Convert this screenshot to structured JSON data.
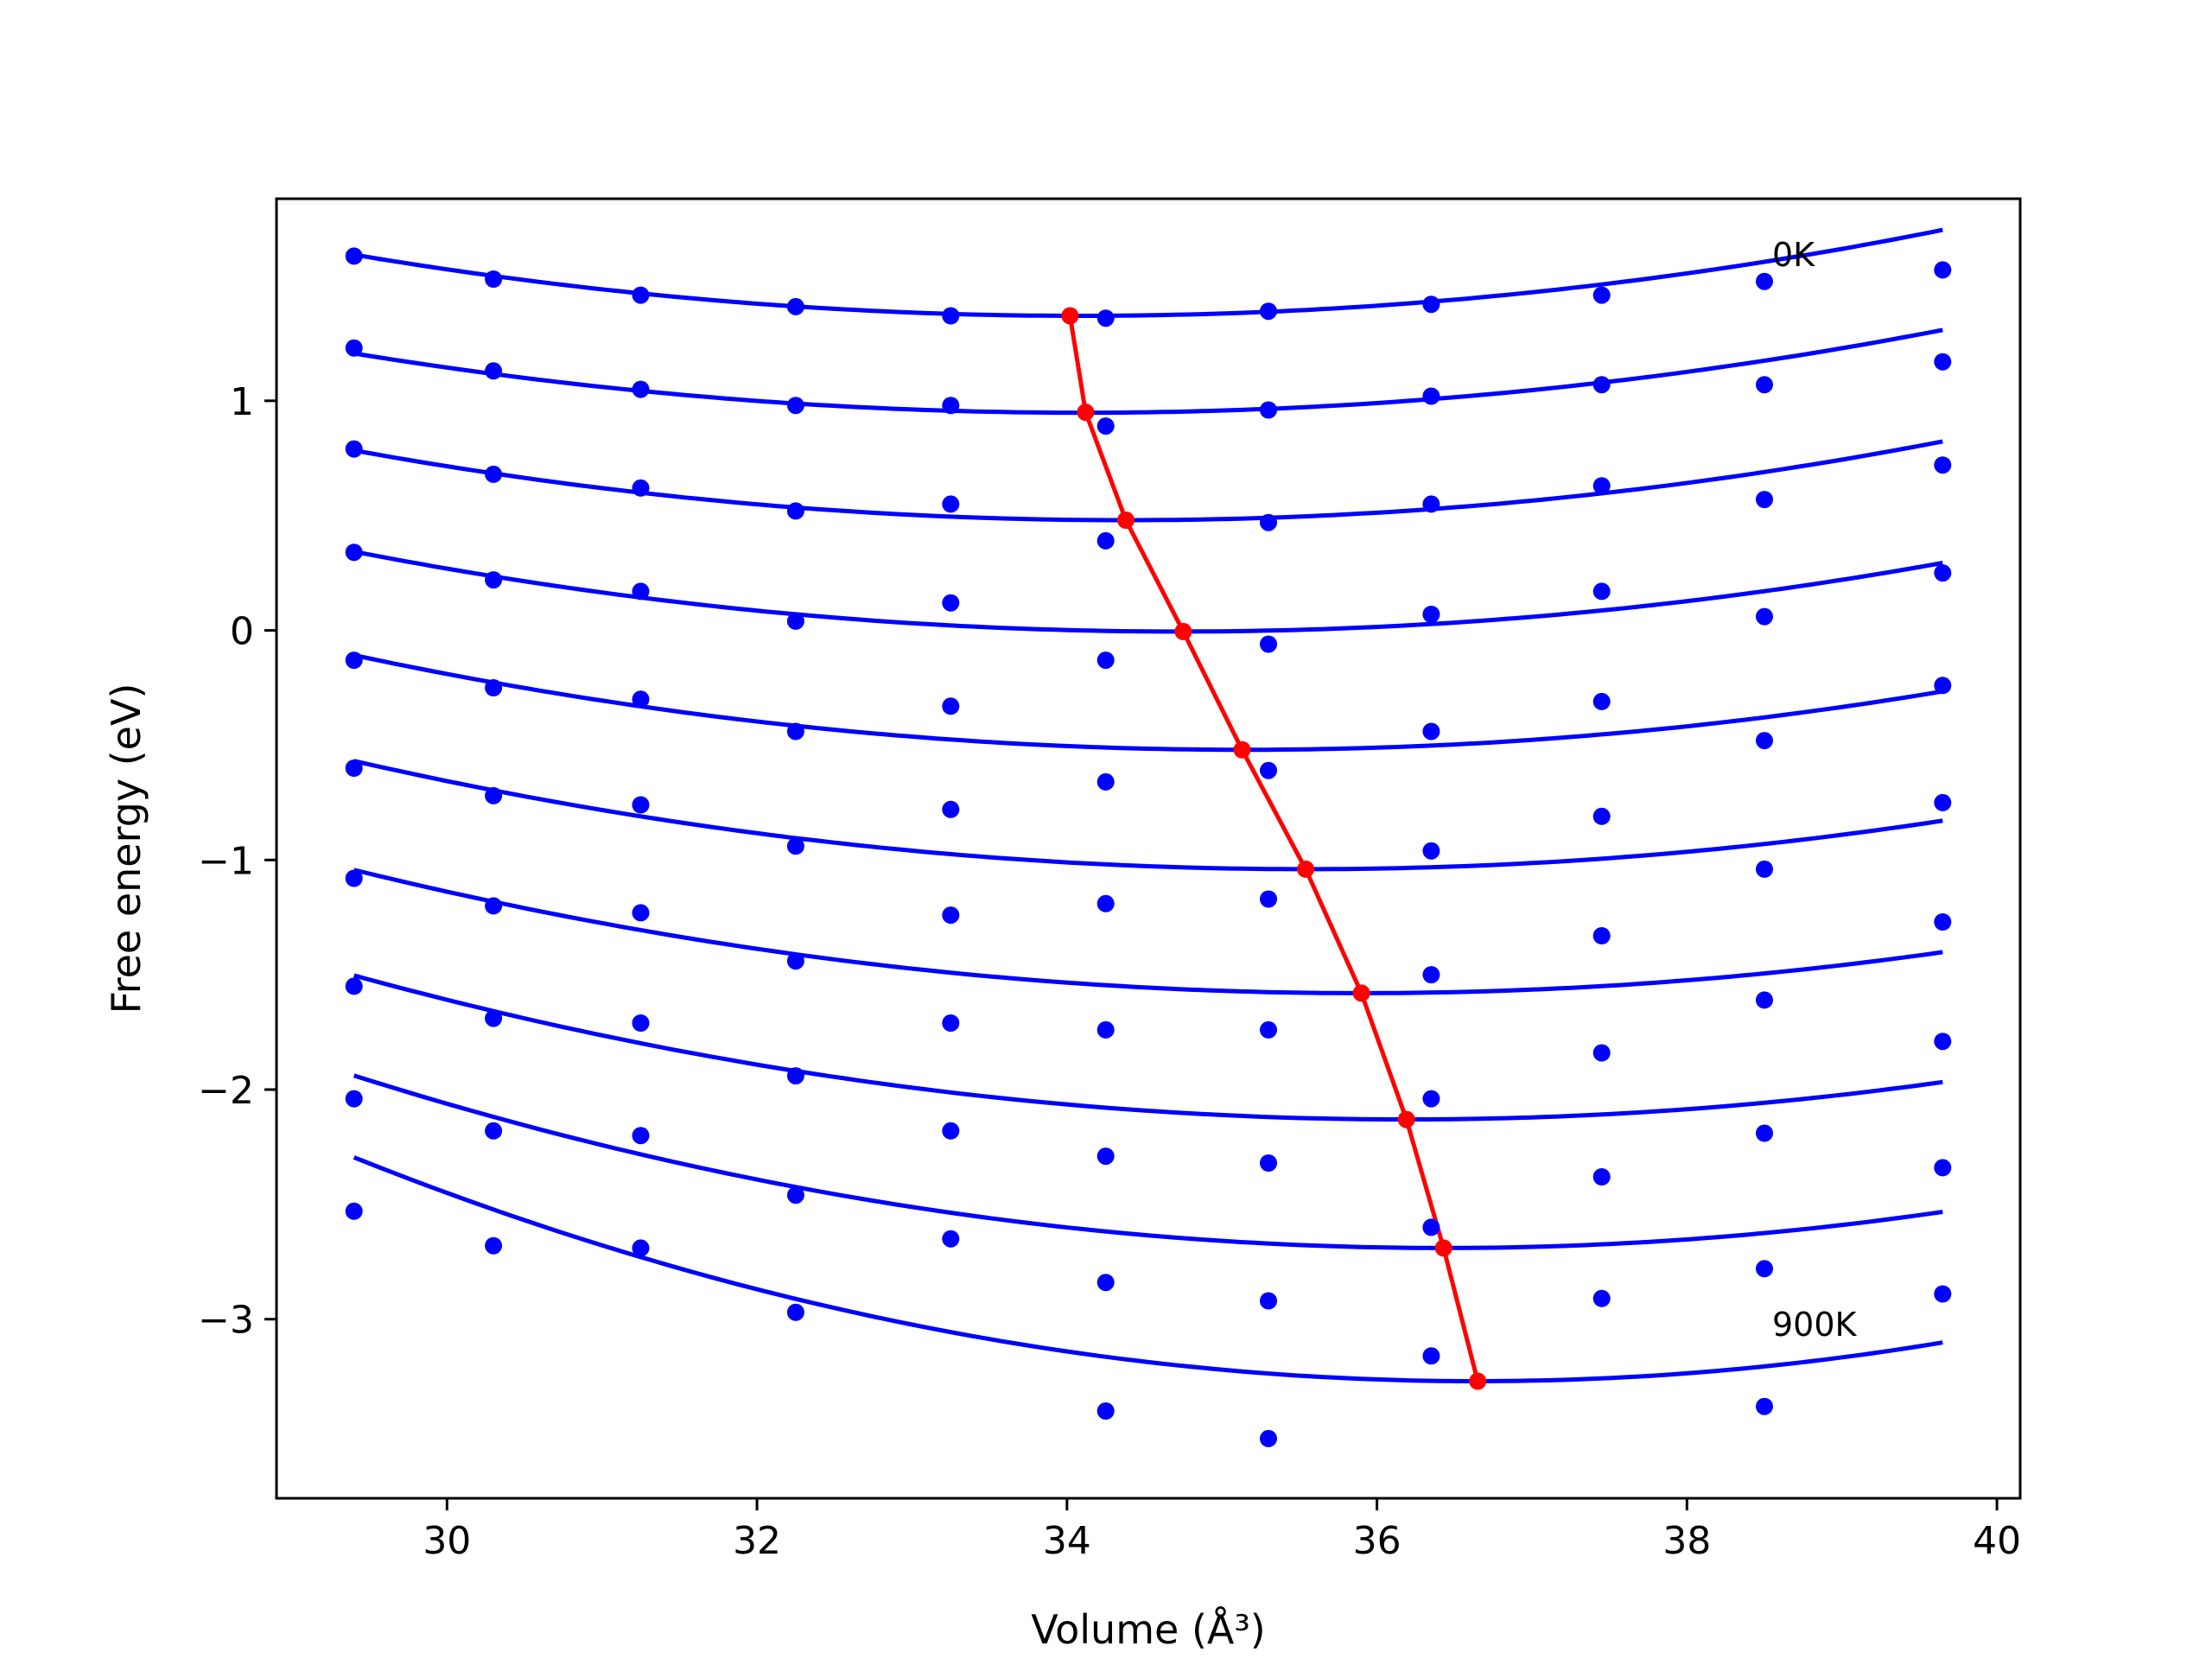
{
  "chart_data": {
    "type": "scatter",
    "title": "",
    "xlabel": "Volume (Å³)",
    "ylabel": "Free energy (eV)",
    "xlim": [
      28.9,
      40.15
    ],
    "ylim": [
      -3.78,
      1.88
    ],
    "xticks": [
      30,
      32,
      34,
      36,
      38,
      40
    ],
    "yticks": [
      -3,
      -2,
      -1,
      0,
      1
    ],
    "xtick_labels": [
      "30",
      "32",
      "34",
      "36",
      "38",
      "40"
    ],
    "ytick_labels": [
      "−3",
      "−2",
      "−1",
      "0",
      "1"
    ],
    "grid": false,
    "legend": false,
    "x": [
      29.4,
      30.3,
      31.25,
      32.25,
      33.25,
      34.25,
      35.3,
      36.35,
      37.45,
      38.5,
      39.65
    ],
    "series": [
      {
        "points": [
          1.63,
          1.53,
          1.46,
          1.41,
          1.37,
          1.36,
          1.39,
          1.42,
          1.46,
          1.52,
          1.57
        ],
        "fit": {
          "a": 0.0121,
          "v0": 34.09,
          "e0": 1.37
        }
      },
      {
        "points": [
          1.23,
          1.13,
          1.05,
          0.98,
          0.98,
          0.89,
          0.96,
          1.02,
          1.07,
          1.07,
          1.17
        ],
        "fit": {
          "a": 0.0117,
          "v0": 34.1,
          "e0": 0.948
        }
      },
      {
        "points": [
          0.79,
          0.68,
          0.62,
          0.52,
          0.55,
          0.39,
          0.47,
          0.55,
          0.63,
          0.57,
          0.72
        ],
        "fit": {
          "a": 0.0123,
          "v0": 34.37,
          "e0": 0.48
        }
      },
      {
        "points": [
          0.34,
          0.22,
          0.17,
          0.04,
          0.12,
          -0.13,
          -0.06,
          0.07,
          0.17,
          0.06,
          0.25
        ],
        "fit": {
          "a": 0.0123,
          "v0": 34.72,
          "e0": -0.005
        }
      },
      {
        "points": [
          -0.13,
          -0.25,
          -0.3,
          -0.44,
          -0.33,
          -0.66,
          -0.61,
          -0.44,
          -0.31,
          -0.48,
          -0.24
        ],
        "fit": {
          "a": 0.0125,
          "v0": 35.14,
          "e0": -0.52
        }
      },
      {
        "points": [
          -0.6,
          -0.72,
          -0.76,
          -0.94,
          -0.78,
          -1.19,
          -1.17,
          -0.96,
          -0.81,
          -1.04,
          -0.75
        ],
        "fit": {
          "a": 0.0125,
          "v0": 35.54,
          "e0": -1.04
        }
      },
      {
        "points": [
          -1.08,
          -1.2,
          -1.23,
          -1.44,
          -1.24,
          -1.74,
          -1.74,
          -1.5,
          -1.33,
          -1.61,
          -1.27
        ],
        "fit": {
          "a": 0.0127,
          "v0": 35.9,
          "e0": -1.58
        }
      },
      {
        "points": [
          -1.55,
          -1.69,
          -1.71,
          -1.94,
          -1.71,
          -2.29,
          -2.32,
          -2.04,
          -1.84,
          -2.19,
          -1.79
        ],
        "fit": {
          "a": 0.0136,
          "v0": 36.19,
          "e0": -2.13
        }
      },
      {
        "points": [
          -2.04,
          -2.18,
          -2.2,
          -2.46,
          -2.18,
          -2.84,
          -2.92,
          -2.6,
          -2.38,
          -2.78,
          -2.34
        ],
        "fit": {
          "a": 0.0152,
          "v0": 36.43,
          "e0": -2.69
        }
      },
      {
        "points": [
          -2.53,
          -2.68,
          -2.69,
          -2.97,
          -2.65,
          -3.4,
          -3.52,
          -3.16,
          -2.91,
          -3.38,
          -2.89
        ],
        "fit": {
          "a": 0.0186,
          "v0": 36.64,
          "e0": -3.27
        }
      }
    ],
    "minimum_line": {
      "x": [
        34.02,
        34.12,
        34.38,
        34.75,
        35.13,
        35.54,
        35.9,
        36.19,
        36.43,
        36.65
      ],
      "y": [
        1.37,
        0.95,
        0.48,
        -0.005,
        -0.52,
        -1.04,
        -1.58,
        -2.13,
        -2.69,
        -3.27
      ],
      "color": "#ff0000"
    },
    "annotations": [
      {
        "text": "0K",
        "x": 38.55,
        "y": 1.64
      },
      {
        "text": "900K",
        "x": 38.55,
        "y": -3.02
      }
    ],
    "colors": {
      "points": "#0000ff",
      "fits": "#0000ff",
      "minimum_line": "#ff0000"
    }
  }
}
